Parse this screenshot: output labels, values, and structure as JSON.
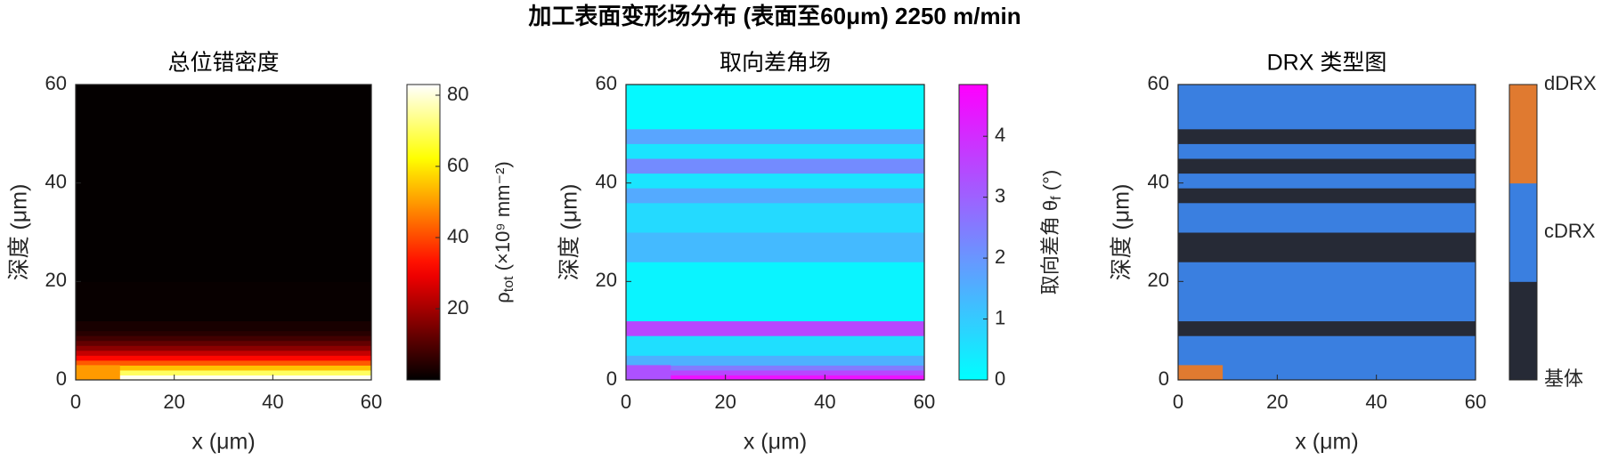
{
  "title": "加工表面变形场分布 (表面至60μm)   2250 m/min",
  "chart_data": [
    {
      "type": "heatmap",
      "title": "总位错密度",
      "xlabel": "x (μm)",
      "ylabel": "深度 (μm)",
      "xlim": [
        0,
        60
      ],
      "xticks": [
        0,
        20,
        40,
        60
      ],
      "ylim": [
        0,
        60
      ],
      "yticks": [
        0,
        20,
        40,
        60
      ],
      "colormap": "hot",
      "clim": [
        0,
        83
      ],
      "cticks": [
        20,
        40,
        60,
        80
      ],
      "colorbar_label": {
        "symbol": "ρ",
        "subscript": "tot",
        "unit": " (×10⁹ mm⁻²)"
      },
      "y_edges": [
        0,
        1,
        2,
        3,
        4,
        5,
        6,
        7,
        8,
        9,
        10,
        12,
        20,
        60
      ],
      "values": [
        82,
        70,
        55,
        42,
        32,
        24,
        17,
        12,
        8,
        5,
        3,
        1,
        0.5
      ],
      "patch": {
        "x": [
          0,
          9
        ],
        "y": [
          0,
          3
        ],
        "value": 50
      }
    },
    {
      "type": "heatmap",
      "title": "取向差角场",
      "xlabel": "x (μm)",
      "ylabel": "深度 (μm)",
      "xlim": [
        0,
        60
      ],
      "xticks": [
        0,
        20,
        40,
        60
      ],
      "ylim": [
        0,
        60
      ],
      "yticks": [
        0,
        20,
        40,
        60
      ],
      "colormap": "cool",
      "clim": [
        0,
        4.85
      ],
      "cticks": [
        0,
        1,
        2,
        3,
        4
      ],
      "colorbar_label": {
        "symbol": "取向差角 θ",
        "subscript": "f",
        "unit": " (°)"
      },
      "y_edges": [
        0,
        1,
        2,
        3,
        5,
        9,
        12,
        24,
        30,
        36,
        39,
        42,
        45,
        48,
        51,
        60
      ],
      "values": [
        4.5,
        3.5,
        2.5,
        1.5,
        0.6,
        3.5,
        0.2,
        1.3,
        0.7,
        1.6,
        0.5,
        2.2,
        0.5,
        1.7,
        0.1
      ],
      "patch": {
        "x": [
          0,
          9
        ],
        "y": [
          0,
          3
        ],
        "value": 3.3
      }
    },
    {
      "type": "heatmap",
      "title": "DRX 类型图",
      "xlabel": "x (μm)",
      "ylabel": "深度 (μm)",
      "xlim": [
        0,
        60
      ],
      "xticks": [
        0,
        20,
        40,
        60
      ],
      "ylim": [
        0,
        60
      ],
      "yticks": [
        0,
        20,
        40,
        60
      ],
      "colormap": "categorical",
      "colors": [
        "#262a36",
        "#3a7fe0",
        "#e07a30"
      ],
      "clim": [
        0,
        2
      ],
      "cticks": [
        {
          "value": 0,
          "label": "基体"
        },
        {
          "value": 1,
          "label": "cDRX"
        },
        {
          "value": 2,
          "label": "dDRX"
        }
      ],
      "y_edges": [
        0,
        9,
        12,
        24,
        30,
        36,
        39,
        42,
        45,
        48,
        51,
        60
      ],
      "values": [
        1,
        0,
        1,
        0,
        1,
        0,
        1,
        0,
        1,
        0,
        1
      ],
      "patch": {
        "x": [
          0,
          9
        ],
        "y": [
          0,
          3
        ],
        "value": 2
      }
    }
  ]
}
